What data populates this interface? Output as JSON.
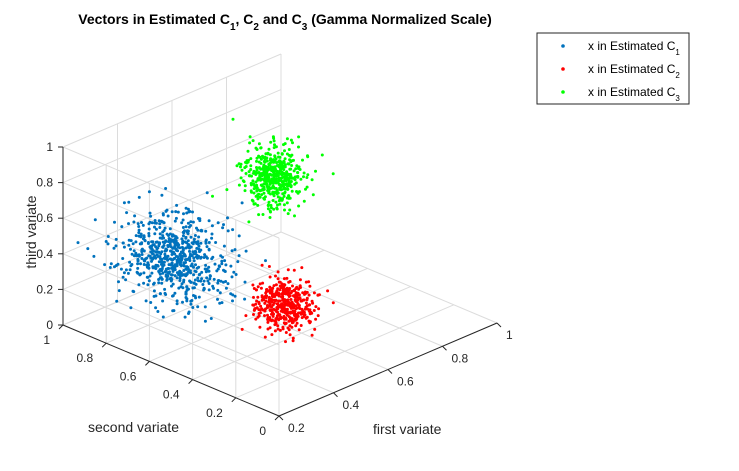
{
  "chart_data": {
    "type": "scatter",
    "title": {
      "parts": [
        "Vectors in Estimated C",
        "1",
        ", C",
        "2",
        " and C",
        "3",
        " (Gamma Normalized Scale)"
      ]
    },
    "xlabel": "first variate",
    "ylabel": "second variate",
    "zlabel": "third variate",
    "xlim": [
      0.2,
      1
    ],
    "ylim": [
      0,
      1
    ],
    "zlim": [
      0,
      1
    ],
    "x_ticks": [
      "0.2",
      "0.4",
      "0.6",
      "0.8",
      "1"
    ],
    "y_ticks": [
      "0",
      "0.2",
      "0.4",
      "0.6",
      "0.8",
      "1"
    ],
    "z_ticks": [
      "0",
      "0.2",
      "0.4",
      "0.6",
      "0.8",
      "1"
    ],
    "grid": true,
    "legend_position": "top-right",
    "series": [
      {
        "name_parts": [
          "x in Estimated C",
          "1"
        ],
        "color": "#0072bd",
        "count": 700,
        "center": [
          0.38,
          0.72,
          0.4
        ],
        "spread": [
          0.06,
          0.1,
          0.11
        ]
      },
      {
        "name_parts": [
          "x in Estimated C",
          "2"
        ],
        "color": "#ff0000",
        "count": 450,
        "center": [
          0.52,
          0.38,
          0.22
        ],
        "spread": [
          0.035,
          0.05,
          0.065
        ]
      },
      {
        "name_parts": [
          "x in Estimated C",
          "3"
        ],
        "color": "#00ff00",
        "count": 500,
        "center": [
          0.7,
          0.66,
          0.68
        ],
        "spread": [
          0.04,
          0.05,
          0.075
        ]
      }
    ]
  }
}
